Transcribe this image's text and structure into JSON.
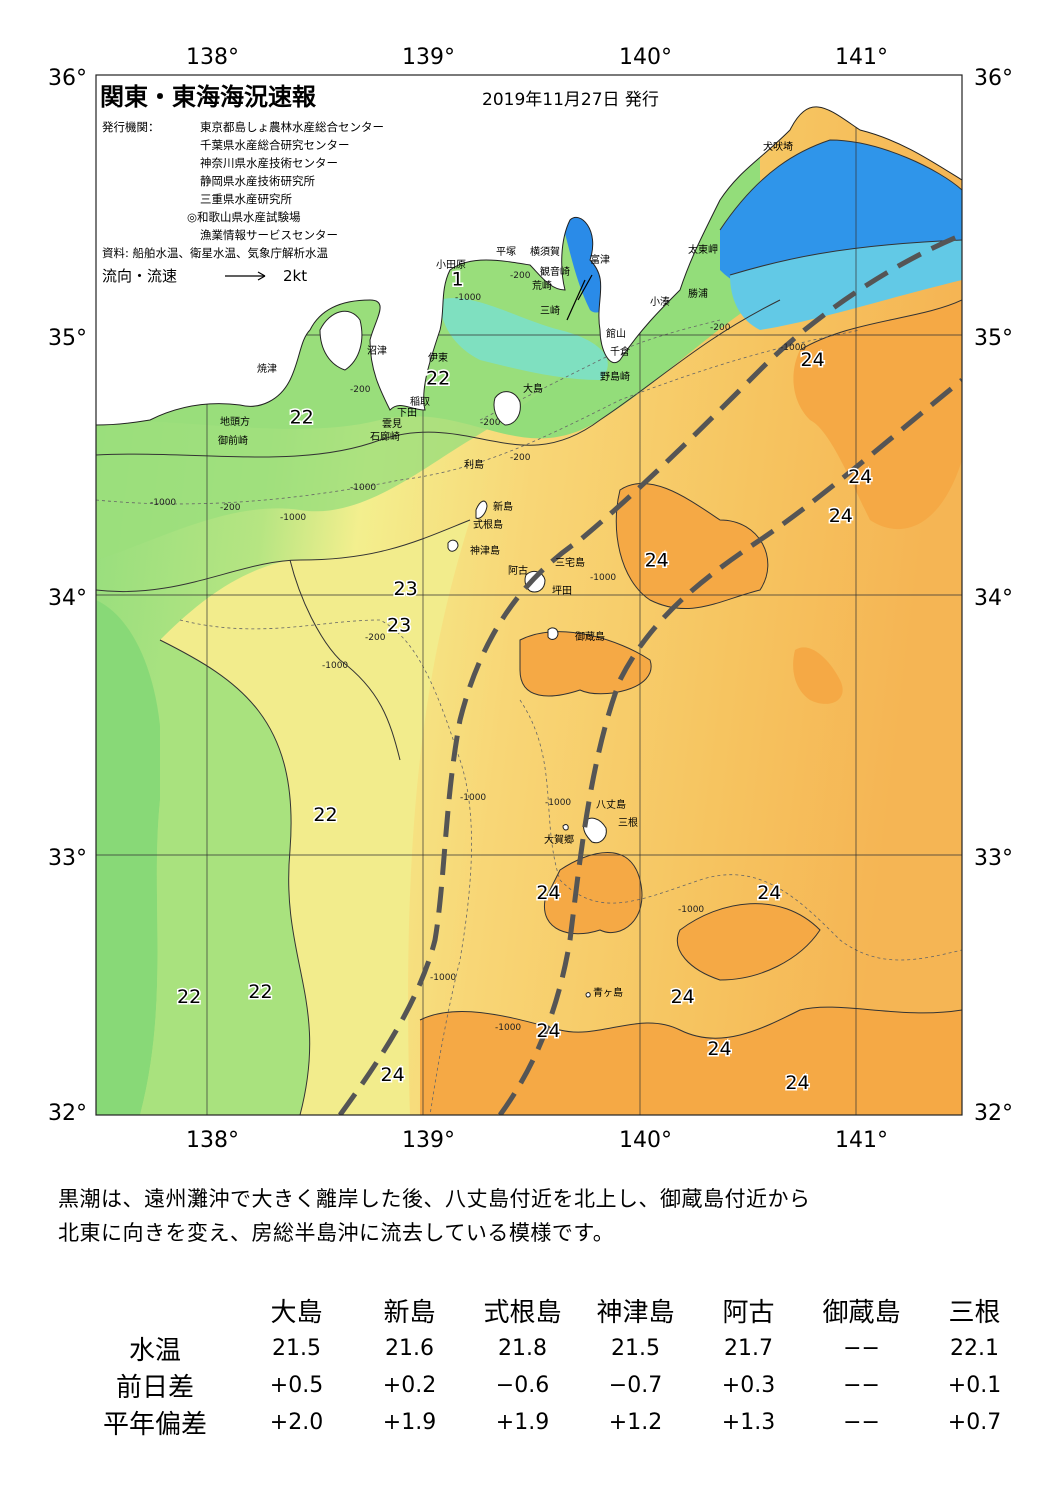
{
  "map": {
    "title": "関東・東海海況速報",
    "date": "2019年11月27日 発行",
    "publisher_label": "発行機関：",
    "publishers": [
      "東京都島しょ農林水産総合センター",
      "千葉県水産総合研究センター",
      "神奈川県水産技術センター",
      "静岡県水産技術研究所",
      "三重県水産研究所",
      "◎和歌山県水産試験場",
      "漁業情報サービスセンター"
    ],
    "source": "資料: 船舶水温、衛星水温、気象庁解析水温",
    "flow_label": "流向・流速",
    "flow_scale": "2kt",
    "lon_labels": [
      "138°",
      "139°",
      "140°",
      "141°"
    ],
    "lat_labels": [
      "36°",
      "35°",
      "34°",
      "33°",
      "32°"
    ],
    "lon_range": [
      137.5,
      141.5
    ],
    "lat_range": [
      32,
      36
    ],
    "place_names": [
      "犬吠埼",
      "太東岬",
      "勝浦",
      "小湊",
      "館山",
      "千倉",
      "野島崎",
      "富津",
      "観音崎",
      "横須賀",
      "荒崎",
      "三崎",
      "平塚",
      "小田原",
      "沼津",
      "伊東",
      "焼津",
      "地頭方",
      "御前崎",
      "稲取",
      "下田",
      "雲見",
      "石廊崎",
      "大島",
      "利島",
      "新島",
      "式根島",
      "神津島",
      "三宅島",
      "阿古",
      "坪田",
      "御蔵島",
      "八丈島",
      "三根",
      "大賀郷",
      "青ヶ島"
    ],
    "temp_labels": [
      {
        "t": "1",
        "lon": 139.17,
        "lat": 35.19
      },
      {
        "t": "22",
        "lon": 139.08,
        "lat": 34.81
      },
      {
        "t": "22",
        "lon": 138.45,
        "lat": 34.66
      },
      {
        "t": "23",
        "lon": 138.93,
        "lat": 34.0
      },
      {
        "t": "23",
        "lon": 138.9,
        "lat": 33.86
      },
      {
        "t": "22",
        "lon": 138.56,
        "lat": 33.13
      },
      {
        "t": "22",
        "lon": 137.93,
        "lat": 32.43
      },
      {
        "t": "22",
        "lon": 138.26,
        "lat": 32.45
      },
      {
        "t": "24",
        "lon": 138.87,
        "lat": 32.13
      },
      {
        "t": "24",
        "lon": 139.59,
        "lat": 32.83
      },
      {
        "t": "24",
        "lon": 139.59,
        "lat": 32.3
      },
      {
        "t": "24",
        "lon": 140.09,
        "lat": 34.11
      },
      {
        "t": "24",
        "lon": 140.81,
        "lat": 34.88
      },
      {
        "t": "24",
        "lon": 141.03,
        "lat": 34.43
      },
      {
        "t": "24",
        "lon": 140.94,
        "lat": 34.28
      },
      {
        "t": "24",
        "lon": 140.61,
        "lat": 32.83
      },
      {
        "t": "24",
        "lon": 140.21,
        "lat": 32.43
      },
      {
        "t": "24",
        "lon": 140.38,
        "lat": 32.23
      },
      {
        "t": "24",
        "lon": 140.74,
        "lat": 32.1
      }
    ],
    "depth_labels": [
      "-200",
      "-1000"
    ],
    "colors": {
      "kuroshio": "#555555",
      "warm": "#f6b654",
      "yellow": "#f8e885",
      "green": "#a6e07f",
      "cold": "#2b86e6"
    }
  },
  "description": [
    "黒潮は、遠州灘沖で大きく離岸した後、八丈島付近を北上し、御蔵島付近から",
    "北東に向きを変え、房総半島沖に流去している模様です。"
  ],
  "stats": {
    "stations": [
      "大島",
      "新島",
      "式根島",
      "神津島",
      "阿古",
      "御蔵島",
      "三根"
    ],
    "rows": [
      {
        "label": "水温",
        "values": [
          "21.5",
          "21.6",
          "21.8",
          "21.5",
          "21.7",
          "−−",
          "22.1"
        ]
      },
      {
        "label": "前日差",
        "values": [
          "+0.5",
          "+0.2",
          "−0.6",
          "−0.7",
          "+0.3",
          "−−",
          "+0.1"
        ]
      },
      {
        "label": "平年偏差",
        "values": [
          "+2.0",
          "+1.9",
          "+1.9",
          "+1.2",
          "+1.3",
          "−−",
          "+0.7"
        ]
      }
    ]
  }
}
